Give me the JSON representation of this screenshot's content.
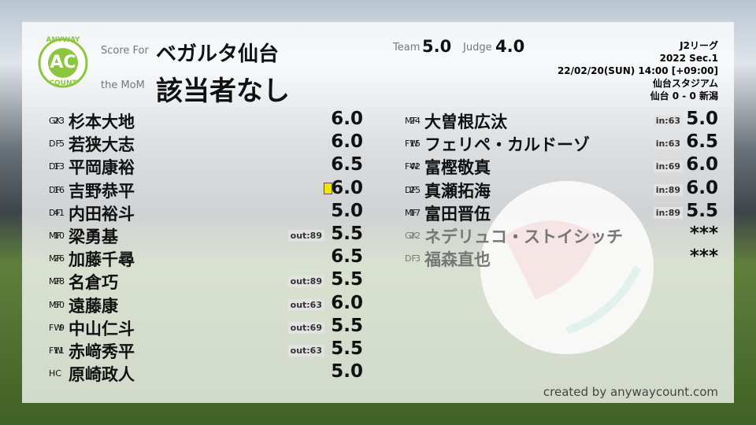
{
  "header": {
    "logo_top": "ANYWAY",
    "logo_mid": "AC",
    "logo_bottom": "COUNT",
    "score_for_label": "Score For",
    "team": "ベガルタ仙台",
    "mom_label": "the MoM",
    "mom": "該当者なし",
    "team_score_label": "Team",
    "team_score": "5.0",
    "judge_label": "Judge",
    "judge_score": "4.0",
    "league": "J2リーグ",
    "section": "2022 Sec.1",
    "datetime": "22/02/20(SUN) 14:00 [+09:00]",
    "venue": "仙台スタジアム",
    "result": "仙台 0 - 0 新潟"
  },
  "starters": [
    {
      "number": "23",
      "pos": "GK",
      "name": "杉本大地",
      "rating": "6.0"
    },
    {
      "number": "5",
      "pos": "DF",
      "name": "若狭大志",
      "rating": "6.0"
    },
    {
      "number": "13",
      "pos": "DF",
      "name": "平岡康裕",
      "rating": "6.5"
    },
    {
      "number": "16",
      "pos": "DF",
      "name": "吉野恭平",
      "rating": "6.0",
      "card": "yellow"
    },
    {
      "number": "41",
      "pos": "DF",
      "name": "内田裕斗",
      "rating": "5.0"
    },
    {
      "number": "10",
      "pos": "MF",
      "name": "梁勇基",
      "note": "out:89",
      "rating": "5.5"
    },
    {
      "number": "26",
      "pos": "MF",
      "name": "加藤千尋",
      "rating": "6.5"
    },
    {
      "number": "28",
      "pos": "MF",
      "name": "名倉巧",
      "note": "out:89",
      "rating": "5.5"
    },
    {
      "number": "50",
      "pos": "MF",
      "name": "遠藤康",
      "note": "out:63",
      "rating": "6.0"
    },
    {
      "number": "9",
      "pos": "FW",
      "name": "中山仁斗",
      "note": "out:69",
      "rating": "5.5"
    },
    {
      "number": "11",
      "pos": "FW",
      "name": "赤﨑秀平",
      "note": "out:63",
      "rating": "5.5"
    },
    {
      "pos": "HC",
      "name": "原崎政人",
      "rating": "5.0"
    }
  ],
  "subs": [
    {
      "number": "24",
      "pos": "MF",
      "name": "大曽根広汰",
      "note": "in:63",
      "rating": "5.0"
    },
    {
      "number": "15",
      "pos": "FW",
      "name": "フェリペ・カルドーゾ",
      "note": "in:63",
      "rating": "6.5"
    },
    {
      "number": "42",
      "pos": "FW",
      "name": "富樫敬真",
      "note": "in:69",
      "rating": "6.0"
    },
    {
      "number": "25",
      "pos": "DF",
      "name": "真瀬拓海",
      "note": "in:89",
      "rating": "6.0"
    },
    {
      "number": "17",
      "pos": "MF",
      "name": "富田晋伍",
      "note": "in:89",
      "rating": "5.5"
    },
    {
      "number": "22",
      "pos": "GK",
      "name": "ネデリュコ・ストイシッチ",
      "rating": "***",
      "unused": true
    },
    {
      "number": "3",
      "pos": "DF",
      "name": "福森直也",
      "rating": "***",
      "unused": true
    }
  ],
  "footer": "created by anywaycount.com"
}
